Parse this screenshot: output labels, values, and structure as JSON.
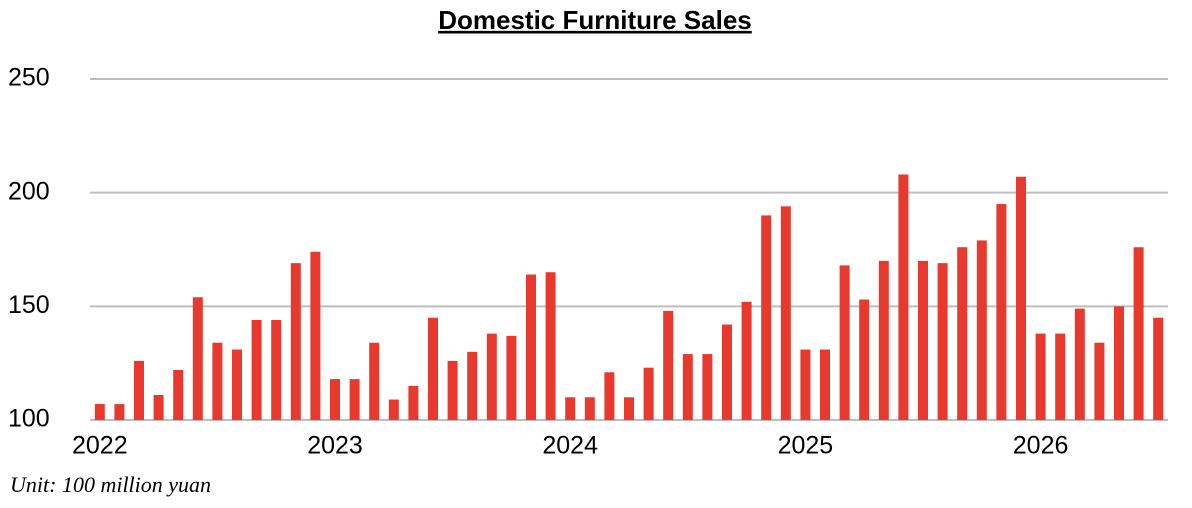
{
  "chart_data": {
    "type": "bar",
    "title": "Domestic Furniture Sales",
    "note": "Unit: 100 million yuan",
    "categories": [
      "2022",
      null,
      null,
      null,
      null,
      null,
      null,
      null,
      null,
      null,
      null,
      null,
      "2023",
      null,
      null,
      null,
      null,
      null,
      null,
      null,
      null,
      null,
      null,
      null,
      "2024",
      null,
      null,
      null,
      null,
      null,
      null,
      null,
      null,
      null,
      null,
      null,
      "2025",
      null,
      null,
      null,
      null,
      null,
      null,
      null,
      null,
      null,
      null,
      null,
      "2026",
      null,
      null,
      null,
      null,
      null,
      null
    ],
    "values": [
      107,
      107,
      126,
      111,
      122,
      154,
      134,
      131,
      144,
      144,
      169,
      174,
      118,
      118,
      134,
      109,
      115,
      145,
      126,
      130,
      138,
      137,
      164,
      165,
      110,
      110,
      121,
      110,
      123,
      148,
      129,
      129,
      142,
      152,
      190,
      194,
      131,
      131,
      168,
      153,
      170,
      208,
      170,
      169,
      176,
      179,
      195,
      207,
      138,
      138,
      149,
      134,
      150,
      176,
      145
    ],
    "color": "#e8392f",
    "ylim": [
      100,
      250
    ],
    "yticks": [
      100,
      150,
      200,
      250
    ],
    "grid": true
  }
}
